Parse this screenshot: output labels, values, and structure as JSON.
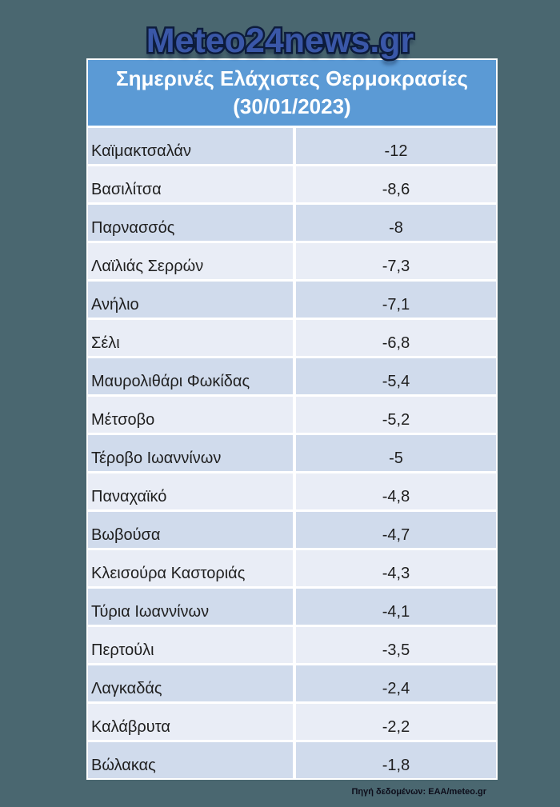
{
  "watermark": {
    "text": "Meteo24news.gr"
  },
  "header": {
    "title_line1": "Σημερινές Ελάχιστες Θερμοκρασίες",
    "title_line2": "(30/01/2023)"
  },
  "chart_data": {
    "type": "table",
    "title": "Σημερινές Ελάχιστες Θερμοκρασίες (30/01/2023)",
    "rows": [
      {
        "location": "Καϊμακτσαλάν",
        "temperature": "-12",
        "value": -12
      },
      {
        "location": "Βασιλίτσα",
        "temperature": "-8,6",
        "value": -8.6
      },
      {
        "location": "Παρνασσός",
        "temperature": "-8",
        "value": -8
      },
      {
        "location": "Λαϊλιάς Σερρών",
        "temperature": "-7,3",
        "value": -7.3
      },
      {
        "location": "Ανήλιο",
        "temperature": "-7,1",
        "value": -7.1
      },
      {
        "location": "Σέλι",
        "temperature": "-6,8",
        "value": -6.8
      },
      {
        "location": "Μαυρολιθάρι Φωκίδας",
        "temperature": "-5,4",
        "value": -5.4
      },
      {
        "location": "Μέτσοβο",
        "temperature": "-5,2",
        "value": -5.2
      },
      {
        "location": "Τέροβο Ιωαννίνων",
        "temperature": "-5",
        "value": -5
      },
      {
        "location": "Παναχαϊκό",
        "temperature": "-4,8",
        "value": -4.8
      },
      {
        "location": "Βωβούσα",
        "temperature": "-4,7",
        "value": -4.7
      },
      {
        "location": "Κλεισούρα Καστοριάς",
        "temperature": "-4,3",
        "value": -4.3
      },
      {
        "location": "Τύρια Ιωαννίνων",
        "temperature": "-4,1",
        "value": -4.1
      },
      {
        "location": "Περτούλι",
        "temperature": "-3,5",
        "value": -3.5
      },
      {
        "location": "Λαγκαδάς",
        "temperature": "-2,4",
        "value": -2.4
      },
      {
        "location": "Καλάβρυτα",
        "temperature": "-2,2",
        "value": -2.2
      },
      {
        "location": "Βώλακας",
        "temperature": "-1,8",
        "value": -1.8
      }
    ]
  },
  "footer": {
    "source_label": "Πηγή δεδομένων: ΕΑΑ/meteo.gr"
  },
  "colors": {
    "page_background": "#4A6770",
    "header_background": "#5B9AD5",
    "header_text": "#FFFFFF",
    "row_odd": "#D0DBEC",
    "row_even": "#E9EDF6",
    "cell_text": "#1F1F1F",
    "divider": "#FFFFFF",
    "watermark_fill": "#3A57A8",
    "watermark_outline": "#0E1D3D",
    "footer_text": "#0D0D1A"
  }
}
